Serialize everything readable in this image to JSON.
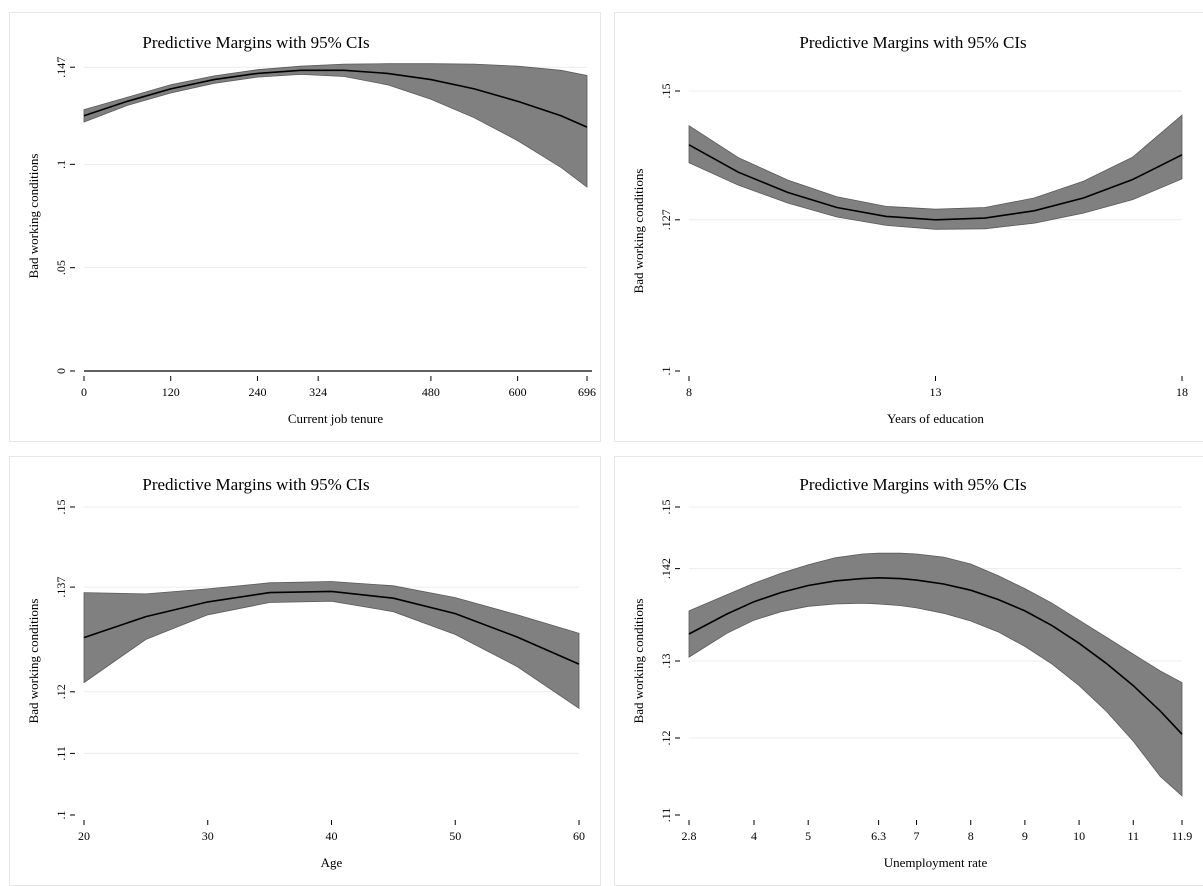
{
  "chart_data": [
    {
      "type": "area",
      "title": "Predictive Margins with 95% CIs",
      "xlabel": "Current job tenure",
      "ylabel": "Bad working conditions",
      "xlim": [
        0,
        696
      ],
      "ylim": [
        0,
        0.15
      ],
      "xticks": [
        0,
        120,
        240,
        324,
        480,
        600,
        696
      ],
      "xtick_labels": [
        "0",
        "120",
        "240",
        "324",
        "480",
        "600",
        "696"
      ],
      "yticks": [
        0,
        0.05,
        0.1,
        0.147
      ],
      "ytick_labels": [
        "0",
        ".05",
        ".1",
        ".147"
      ],
      "grid": true,
      "series": [
        {
          "x": [
            0,
            60,
            120,
            180,
            240,
            300,
            360,
            420,
            480,
            540,
            600,
            660,
            696
          ],
          "y": [
            0.1235,
            0.1305,
            0.1365,
            0.141,
            0.144,
            0.1455,
            0.1455,
            0.144,
            0.141,
            0.1365,
            0.1305,
            0.1235,
            0.118
          ],
          "lower": [
            0.1205,
            0.1285,
            0.1345,
            0.1392,
            0.1422,
            0.1435,
            0.1425,
            0.1385,
            0.1315,
            0.1225,
            0.1115,
            0.0985,
            0.089
          ],
          "upper": [
            0.1265,
            0.1325,
            0.1385,
            0.1428,
            0.1458,
            0.1475,
            0.1485,
            0.1487,
            0.1487,
            0.1485,
            0.1475,
            0.1455,
            0.143
          ]
        }
      ],
      "zero_line": true
    },
    {
      "type": "area",
      "title": "Predictive Margins with 95% CIs",
      "xlabel": "Years of education",
      "ylabel": "Bad working conditions",
      "xlim": [
        8,
        18
      ],
      "ylim": [
        0.1,
        0.15
      ],
      "xticks": [
        8,
        13,
        18
      ],
      "xtick_labels": [
        "8",
        "13",
        "18"
      ],
      "yticks": [
        0.1,
        0.127,
        0.15
      ],
      "ytick_labels": [
        ".1",
        ".127",
        ".15"
      ],
      "grid": true,
      "series": [
        {
          "x": [
            8,
            9,
            10,
            11,
            12,
            13,
            14,
            15,
            16,
            17,
            18
          ],
          "y": [
            0.1404,
            0.1355,
            0.1319,
            0.1292,
            0.1276,
            0.127,
            0.1273,
            0.1286,
            0.1309,
            0.1342,
            0.1386
          ],
          "lower": [
            0.1372,
            0.1332,
            0.13,
            0.1275,
            0.126,
            0.1253,
            0.1254,
            0.1264,
            0.1282,
            0.1306,
            0.1343
          ],
          "upper": [
            0.1438,
            0.1381,
            0.1341,
            0.1311,
            0.1294,
            0.1289,
            0.1292,
            0.1309,
            0.1339,
            0.1382,
            0.1457
          ]
        }
      ],
      "zero_line": false
    },
    {
      "type": "area",
      "title": "Predictive Margins with 95% CIs",
      "xlabel": "Age",
      "ylabel": "Bad working conditions",
      "xlim": [
        20,
        60
      ],
      "ylim": [
        0.1,
        0.15
      ],
      "xticks": [
        20,
        30,
        40,
        50,
        60
      ],
      "xtick_labels": [
        "20",
        "30",
        "40",
        "50",
        "60"
      ],
      "yticks": [
        0.1,
        0.11,
        0.12,
        0.137,
        0.15
      ],
      "ytick_labels": [
        ".1",
        ".11",
        ".12",
        ".137",
        ".15"
      ],
      "grid": true,
      "series": [
        {
          "x": [
            20,
            25,
            30,
            35,
            40,
            45,
            50,
            55,
            60
          ],
          "y": [
            0.1288,
            0.1322,
            0.1346,
            0.1361,
            0.1363,
            0.1352,
            0.1327,
            0.1289,
            0.1245
          ],
          "lower": [
            0.1215,
            0.1285,
            0.1325,
            0.1345,
            0.1347,
            0.133,
            0.1293,
            0.1241,
            0.1173
          ],
          "upper": [
            0.1361,
            0.1359,
            0.1367,
            0.1377,
            0.1379,
            0.1372,
            0.1353,
            0.1325,
            0.1295
          ]
        }
      ],
      "zero_line": false
    },
    {
      "type": "area",
      "title": "Predictive Margins with 95% CIs",
      "xlabel": "Unemployment rate",
      "ylabel": "Bad working conditions",
      "xlim": [
        2.8,
        11.9
      ],
      "ylim": [
        0.11,
        0.15
      ],
      "xticks": [
        2.8,
        4,
        5,
        6.3,
        7,
        8,
        9,
        10,
        11,
        11.9
      ],
      "xtick_labels": [
        "2.8",
        "4",
        "5",
        "6.3",
        "7",
        "8",
        "9",
        "10",
        "11",
        "11.9"
      ],
      "yticks": [
        0.11,
        0.12,
        0.13,
        0.142,
        0.15
      ],
      "ytick_labels": [
        ".11",
        ".12",
        ".13",
        ".142",
        ".15"
      ],
      "grid": true,
      "series": [
        {
          "x": [
            2.8,
            3.5,
            4,
            4.5,
            5,
            5.5,
            6,
            6.3,
            6.7,
            7,
            7.5,
            8,
            8.5,
            9,
            9.5,
            10,
            10.5,
            11,
            11.5,
            11.9
          ],
          "y": [
            0.1335,
            0.1361,
            0.1377,
            0.1389,
            0.1398,
            0.1404,
            0.1407,
            0.1408,
            0.1407,
            0.1405,
            0.14,
            0.1392,
            0.138,
            0.1365,
            0.1346,
            0.1323,
            0.1297,
            0.1268,
            0.1235,
            0.1205
          ],
          "lower": [
            0.1305,
            0.1336,
            0.1353,
            0.1364,
            0.1371,
            0.1374,
            0.1375,
            0.1374,
            0.1372,
            0.1369,
            0.1362,
            0.1352,
            0.1338,
            0.1319,
            0.1296,
            0.1268,
            0.1235,
            0.1196,
            0.115,
            0.1125
          ],
          "upper": [
            0.1365,
            0.1386,
            0.1401,
            0.1414,
            0.1425,
            0.1434,
            0.1439,
            0.144,
            0.144,
            0.1439,
            0.1435,
            0.1426,
            0.1411,
            0.1394,
            0.1375,
            0.1353,
            0.1331,
            0.1309,
            0.1287,
            0.1272
          ]
        }
      ],
      "zero_line": false
    }
  ]
}
